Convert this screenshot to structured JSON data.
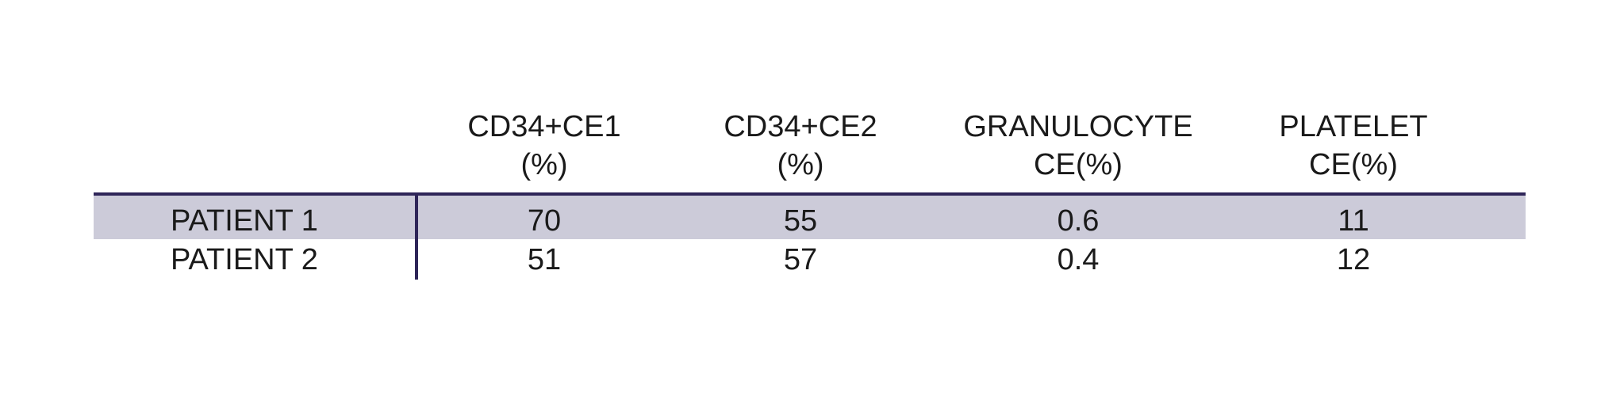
{
  "table": {
    "columns": [
      [
        "CD34+CE1",
        "(%)"
      ],
      [
        "CD34+CE2",
        "(%)"
      ],
      [
        "GRANULOCYTE",
        "CE(%)"
      ],
      [
        "PLATELET",
        "CE(%)"
      ]
    ],
    "rows": [
      {
        "label": "PATIENT 1",
        "values": [
          70,
          55,
          0.6,
          11
        ]
      },
      {
        "label": "PATIENT 2",
        "values": [
          51,
          57,
          0.4,
          12
        ]
      }
    ]
  }
}
